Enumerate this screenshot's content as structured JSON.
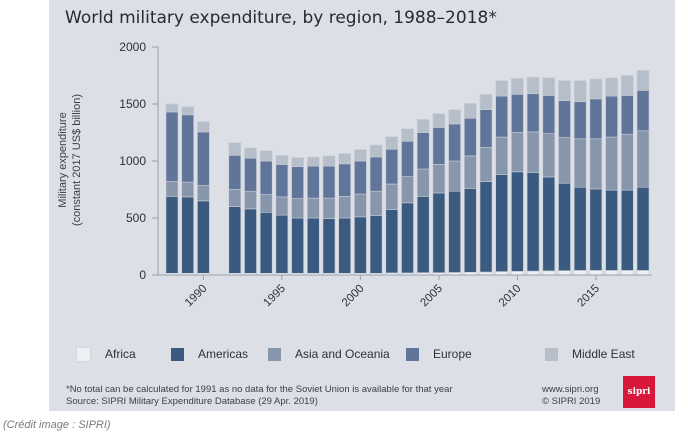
{
  "caption": "(Crédit image : SIPRI)",
  "footnote": "*No total can be calculated for 1991 as no data for the Soviet Union is available for that year",
  "source": "Source: SIPRI Military Expenditure Database (29 Apr. 2019)",
  "website": "www.sipri.org",
  "copyright": "© SIPRI 2019",
  "logo_text": "sipri",
  "colors": {
    "Africa": "#eef0f4",
    "Americas": "#3a5a80",
    "Asia and Oceania": "#8796ab",
    "Europe": "#61759a",
    "Middle East": "#b5bec9",
    "logo": "#d7183b"
  },
  "chart_data": {
    "type": "bar",
    "stacked": true,
    "title": "World military expenditure, by region, 1988–2018*",
    "xlabel": "",
    "ylabel": [
      "Military expenditure",
      "(constant 2017 US$ billion)"
    ],
    "ylim": [
      0,
      2000
    ],
    "yticks": [
      "0",
      "500",
      "1000",
      "1500",
      "2000"
    ],
    "xticks": [
      "1990",
      "1995",
      "2000",
      "2005",
      "2010",
      "2015"
    ],
    "grid": false,
    "legend_position": "bottom",
    "categories": [
      1988,
      1989,
      1990,
      1991,
      1992,
      1993,
      1994,
      1995,
      1996,
      1997,
      1998,
      1999,
      2000,
      2001,
      2002,
      2003,
      2004,
      2005,
      2006,
      2007,
      2008,
      2009,
      2010,
      2011,
      2012,
      2013,
      2014,
      2015,
      2016,
      2017,
      2018
    ],
    "series": [
      {
        "name": "Africa",
        "values": [
          15,
          15,
          15,
          null,
          15,
          15,
          15,
          15,
          15,
          15,
          15,
          15,
          15,
          15,
          18,
          18,
          20,
          20,
          22,
          24,
          26,
          30,
          32,
          34,
          36,
          38,
          40,
          40,
          40,
          40,
          40
        ]
      },
      {
        "name": "Americas",
        "values": [
          675,
          670,
          635,
          null,
          585,
          565,
          535,
          510,
          485,
          485,
          480,
          485,
          495,
          505,
          555,
          615,
          670,
          700,
          713,
          736,
          794,
          850,
          873,
          866,
          824,
          767,
          730,
          715,
          705,
          705,
          730
        ]
      },
      {
        "name": "Asia and Oceania",
        "values": [
          130,
          130,
          135,
          null,
          150,
          155,
          155,
          160,
          170,
          175,
          180,
          190,
          200,
          215,
          225,
          230,
          240,
          250,
          265,
          285,
          300,
          330,
          345,
          355,
          380,
          400,
          425,
          440,
          465,
          490,
          495
        ]
      },
      {
        "name": "Europe",
        "values": [
          610,
          590,
          470,
          null,
          300,
          290,
          295,
          285,
          280,
          280,
          280,
          285,
          290,
          300,
          305,
          310,
          320,
          325,
          325,
          330,
          330,
          360,
          335,
          335,
          335,
          325,
          325,
          350,
          360,
          340,
          355
        ]
      },
      {
        "name": "Middle East",
        "values": [
          70,
          70,
          90,
          null,
          110,
          90,
          90,
          80,
          80,
          80,
          90,
          90,
          100,
          105,
          110,
          110,
          115,
          120,
          125,
          130,
          135,
          135,
          140,
          145,
          155,
          175,
          185,
          175,
          160,
          175,
          175
        ]
      }
    ]
  }
}
